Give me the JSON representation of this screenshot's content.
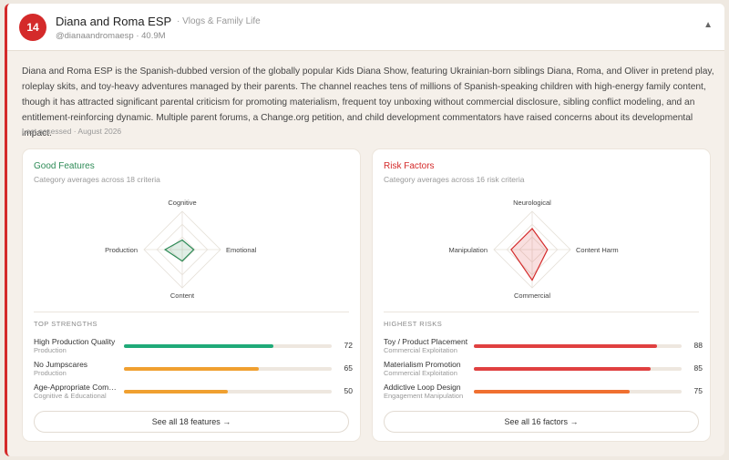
{
  "channel": {
    "rank": "14",
    "name": "Diana and Roma ESP",
    "category": "· Vlogs & Family Life",
    "handle": "@dianaandromaesp · 40.9M",
    "collapse_icon": "chevron-up-icon",
    "description": "Diana and Roma ESP is the Spanish-dubbed version of the globally popular Kids Diana Show, featuring Ukrainian-born siblings Diana, Roma, and Oliver in pretend play, roleplay skits, and toy-heavy adventures managed by their parents. The channel reaches tens of millions of Spanish-speaking children with high-energy family content, though it has attracted significant parental criticism for promoting materialism, frequent toy unboxing without commercial disclosure, sibling conflict modeling, and an entitlement-reinforcing dynamic. Multiple parent forums, a Change.org petition, and child development commentators have raised concerns about its developmental impact.",
    "assessed": "Last assessed · August 2026",
    "accent_color": "#d42a2a"
  },
  "good": {
    "title": "Good Features",
    "subtitle": "Category averages across 18 criteria",
    "color": "#2e8b57",
    "radar": {
      "axes": [
        "Cognitive",
        "Emotional",
        "Content",
        "Production"
      ],
      "values": [
        0.25,
        0.3,
        0.3,
        0.45
      ]
    },
    "section_title": "TOP STRENGTHS",
    "items": [
      {
        "label": "High Production Quality",
        "category": "Production",
        "value": 72,
        "color": "#1faa78"
      },
      {
        "label": "No Jumpscares",
        "category": "Production",
        "value": 65,
        "color": "#f0a030"
      },
      {
        "label": "Age-Appropriate Com…",
        "category": "Cognitive & Educational",
        "value": 50,
        "color": "#f0a030"
      }
    ],
    "see_all": "See all 18 features →"
  },
  "risk": {
    "title": "Risk Factors",
    "subtitle": "Category averages across 16 risk criteria",
    "color": "#d42a2a",
    "radar": {
      "axes": [
        "Neurological",
        "Content Harm",
        "Commercial",
        "Manipulation"
      ],
      "values": [
        0.55,
        0.4,
        0.8,
        0.55
      ]
    },
    "section_title": "HIGHEST RISKS",
    "items": [
      {
        "label": "Toy / Product Placement",
        "category": "Commercial Exploitation",
        "value": 88,
        "color": "#e04040"
      },
      {
        "label": "Materialism Promotion",
        "category": "Commercial Exploitation",
        "value": 85,
        "color": "#e04040"
      },
      {
        "label": "Addictive Loop Design",
        "category": "Engagement Manipulation",
        "value": 75,
        "color": "#f07030"
      }
    ],
    "see_all": "See all 16 factors →"
  }
}
